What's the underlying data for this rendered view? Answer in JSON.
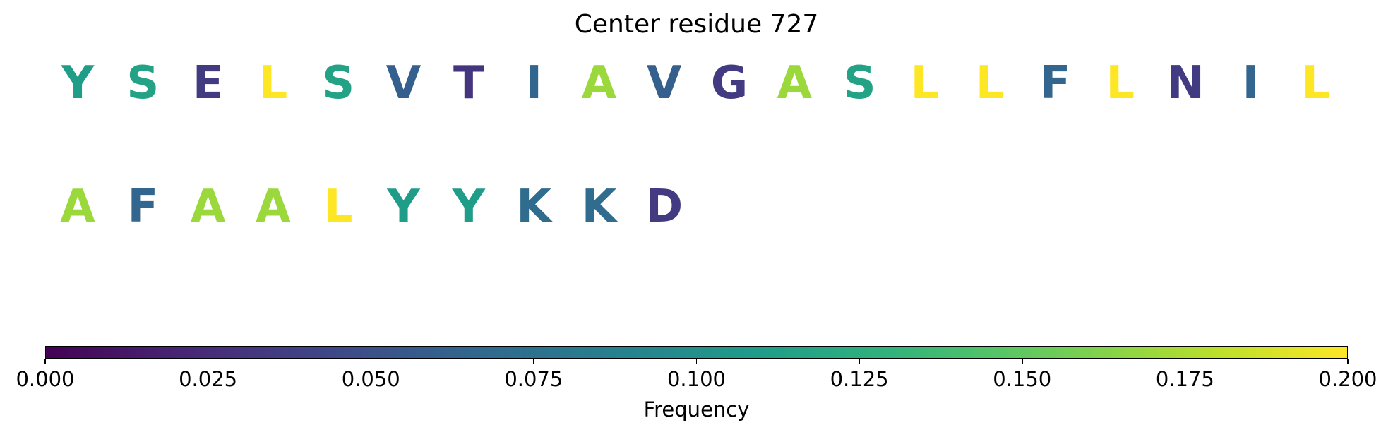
{
  "chart_data": {
    "type": "sequence-logo",
    "title": "Center residue 727",
    "colormap": "viridis",
    "clim": [
      0.0,
      0.2
    ],
    "colorbar_label": "Frequency",
    "colorbar_ticks": [
      "0.000",
      "0.025",
      "0.050",
      "0.075",
      "0.100",
      "0.125",
      "0.150",
      "0.175",
      "0.200"
    ],
    "rows": [
      [
        {
          "residue": "Y",
          "frequency": 0.11
        },
        {
          "residue": "S",
          "frequency": 0.115
        },
        {
          "residue": "E",
          "frequency": 0.035
        },
        {
          "residue": "L",
          "frequency": 0.2
        },
        {
          "residue": "S",
          "frequency": 0.115
        },
        {
          "residue": "V",
          "frequency": 0.06
        },
        {
          "residue": "T",
          "frequency": 0.03
        },
        {
          "residue": "I",
          "frequency": 0.065
        },
        {
          "residue": "A",
          "frequency": 0.17
        },
        {
          "residue": "V",
          "frequency": 0.06
        },
        {
          "residue": "G",
          "frequency": 0.035
        },
        {
          "residue": "A",
          "frequency": 0.17
        },
        {
          "residue": "S",
          "frequency": 0.115
        },
        {
          "residue": "L",
          "frequency": 0.2
        },
        {
          "residue": "L",
          "frequency": 0.2
        },
        {
          "residue": "F",
          "frequency": 0.065
        },
        {
          "residue": "L",
          "frequency": 0.2
        },
        {
          "residue": "N",
          "frequency": 0.035
        },
        {
          "residue": "I",
          "frequency": 0.065
        },
        {
          "residue": "L",
          "frequency": 0.2
        }
      ],
      [
        {
          "residue": "A",
          "frequency": 0.17
        },
        {
          "residue": "F",
          "frequency": 0.065
        },
        {
          "residue": "A",
          "frequency": 0.17
        },
        {
          "residue": "A",
          "frequency": 0.17
        },
        {
          "residue": "L",
          "frequency": 0.2
        },
        {
          "residue": "Y",
          "frequency": 0.11
        },
        {
          "residue": "Y",
          "frequency": 0.11
        },
        {
          "residue": "K",
          "frequency": 0.07
        },
        {
          "residue": "K",
          "frequency": 0.07
        },
        {
          "residue": "D",
          "frequency": 0.035
        }
      ]
    ]
  }
}
